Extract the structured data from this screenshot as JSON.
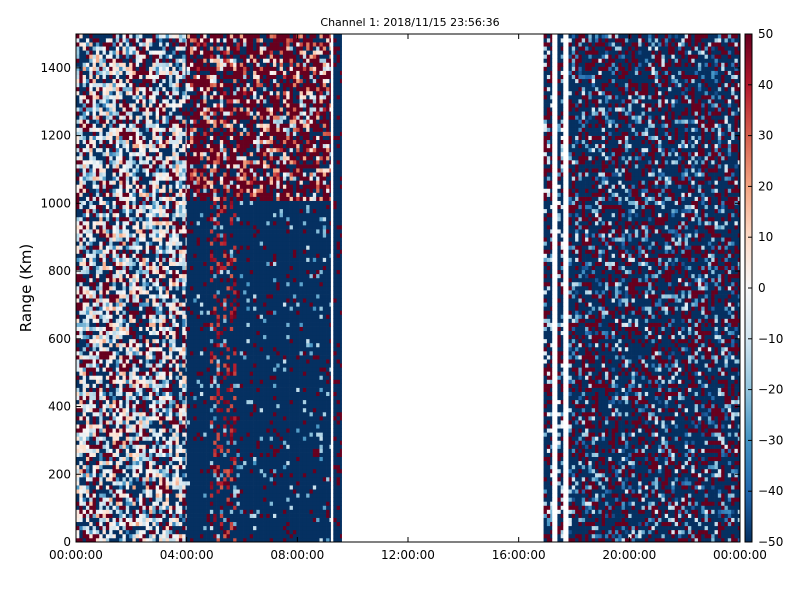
{
  "chart_data": {
    "type": "heatmap",
    "title": "Channel 1: 2018/11/15 23:56:36",
    "xlabel": "",
    "ylabel": "Range (Km)",
    "x_ticks": [
      "00:00:00",
      "04:00:00",
      "08:00:00",
      "12:00:00",
      "16:00:00",
      "20:00:00",
      "00:00:00"
    ],
    "x_range_hours": [
      0,
      24
    ],
    "y_ticks": [
      "0",
      "200",
      "400",
      "600",
      "800",
      "1000",
      "1200",
      "1400"
    ],
    "ylim": [
      0,
      1500
    ],
    "colorbar": {
      "colormap": "RdBu_r",
      "range": [
        -50,
        50
      ],
      "ticks": [
        "50",
        "40",
        "30",
        "20",
        "10",
        "0",
        "−10",
        "−20",
        "−30",
        "−40",
        "−50"
      ],
      "colors": {
        "low": "#053061",
        "mid": "#f7f7f7",
        "high": "#67001f"
      }
    },
    "data_segments": [
      {
        "start_hour": 0.0,
        "end_hour": 4.0,
        "pattern": "noisy mixed values, many near 0 (light colors)"
      },
      {
        "start_hour": 4.0,
        "end_hour": 9.2,
        "pattern": "mostly -50 below ~1000 km, red streaks aloft and near 05:00"
      },
      {
        "start_hour": 9.3,
        "end_hour": 9.6,
        "pattern": "mostly -50 with sparse red"
      },
      {
        "start_hour": 16.9,
        "end_hour": 17.2,
        "pattern": "narrow noisy column"
      },
      {
        "start_hour": 17.4,
        "end_hour": 17.6,
        "pattern": "narrow noisy column"
      },
      {
        "start_hour": 17.8,
        "end_hour": 24.0,
        "pattern": "noisy mixed values, dominated by -50 and +50"
      }
    ]
  }
}
